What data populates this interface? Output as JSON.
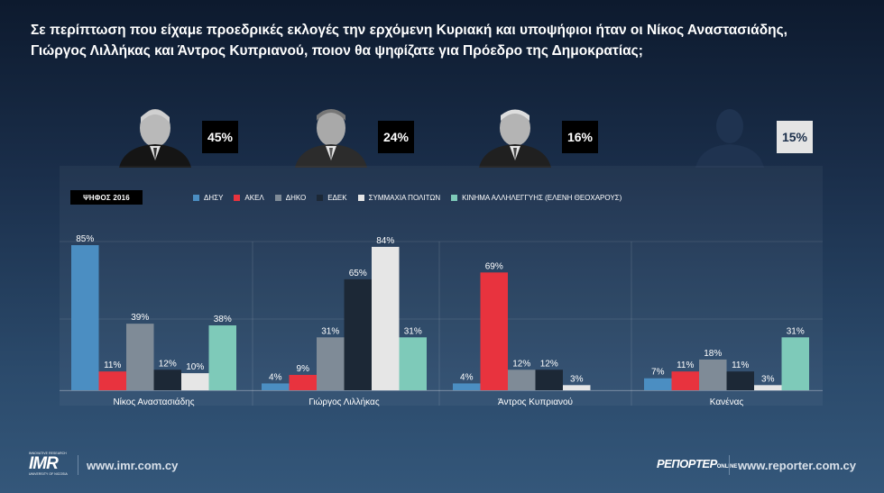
{
  "question": "Σε περίπτωση που είχαμε προεδρικές εκλογές την ερχόμενη Κυριακή και υποψήφιοι ήταν οι Νίκος Αναστασιάδης, Γιώργος Λιλλήκας και Άντρος Κυπριανού, ποιον θα ψηφίζατε για Πρόεδρο της Δημοκρατίας;",
  "candidates": [
    {
      "name": "Νίκος Αναστασιάδης",
      "pct": "45%"
    },
    {
      "name": "Γιώργος Λιλλήκας",
      "pct": "24%"
    },
    {
      "name": "Άντρος Κυπριανού",
      "pct": "16%"
    },
    {
      "name": "Κανένας",
      "pct": "15%"
    }
  ],
  "vote_tag": "ΨΗΦΟΣ 2016",
  "chart_data": {
    "type": "bar",
    "title": "",
    "xlabel": "",
    "ylabel": "",
    "ylim": [
      0,
      90
    ],
    "grid": false,
    "legend_placement": "top",
    "categories": [
      "Νίκος Αναστασιάδης",
      "Γιώργος Λιλλήκας",
      "Άντρος Κυπριανού",
      "Κανένας"
    ],
    "series": [
      {
        "name": "ΔΗΣΥ",
        "color": "#4b8ec2",
        "values": [
          85,
          4,
          4,
          7
        ]
      },
      {
        "name": "ΑΚΕΛ",
        "color": "#e8333e",
        "values": [
          11,
          9,
          69,
          11
        ]
      },
      {
        "name": "ΔΗΚΟ",
        "color": "#7f8b97",
        "values": [
          39,
          31,
          12,
          18
        ]
      },
      {
        "name": "ΕΔΕΚ",
        "color": "#1c2836",
        "values": [
          12,
          65,
          12,
          11
        ]
      },
      {
        "name": "ΣΥΜΜΑΧΙΑ ΠΟΛΙΤΩΝ",
        "color": "#e6e6e6",
        "values": [
          10,
          84,
          3,
          3
        ]
      },
      {
        "name": "ΚΙΝΗΜΑ ΑΛΛΗΛΕΓΓΥΗΣ (ΕΛΕΝΗ ΘΕΟΧΑΡΟΥΣ)",
        "color": "#7ecab9",
        "values": [
          38,
          31,
          null,
          31
        ]
      }
    ]
  },
  "footer": {
    "imr_small": "INNOVATIVE RESEARCH",
    "imr_text": "IMR",
    "imr_sub": "UNIVERSITY OF NICOSIA",
    "imr_url": "www.imr.com.cy",
    "reporter_text": "ΡΕΠΟΡΤΕΡ",
    "reporter_sub": "ONLINE",
    "reporter_url": "www.reporter.com.cy"
  }
}
